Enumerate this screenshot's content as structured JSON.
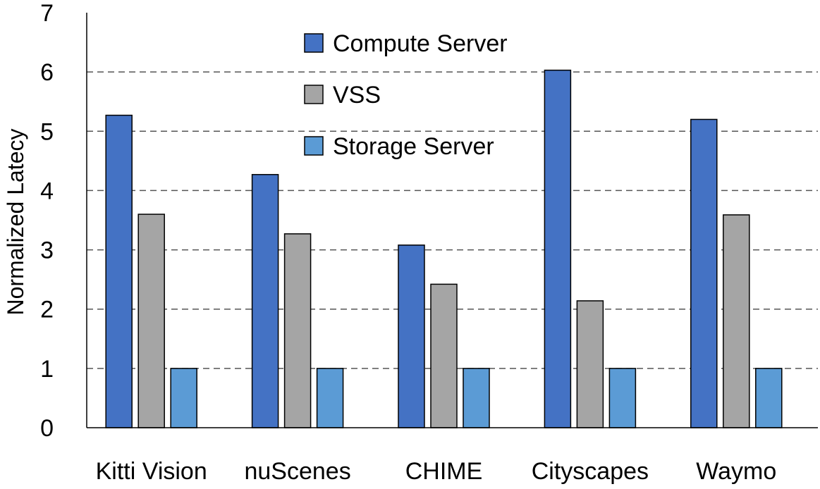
{
  "chart_data": {
    "type": "bar",
    "title": "",
    "xlabel": "",
    "ylabel": "Normalized Latecy",
    "ylim": [
      0,
      7
    ],
    "yticks": [
      0,
      1,
      2,
      3,
      4,
      5,
      6,
      7
    ],
    "grid": "horizontal-dashed",
    "legend_position": "top-center",
    "categories": [
      "Kitti Vision",
      "nuScenes",
      "CHIME",
      "Cityscapes",
      "Waymo"
    ],
    "series": [
      {
        "name": "Compute Server",
        "color": "#4472C4",
        "values": [
          5.27,
          4.27,
          3.08,
          6.03,
          5.2
        ]
      },
      {
        "name": "VSS",
        "color": "#A5A5A5",
        "values": [
          3.6,
          3.27,
          2.42,
          2.14,
          3.59
        ]
      },
      {
        "name": "Storage Server",
        "color": "#5B9BD5",
        "values": [
          1.0,
          1.0,
          1.0,
          1.0,
          1.0
        ]
      }
    ]
  }
}
